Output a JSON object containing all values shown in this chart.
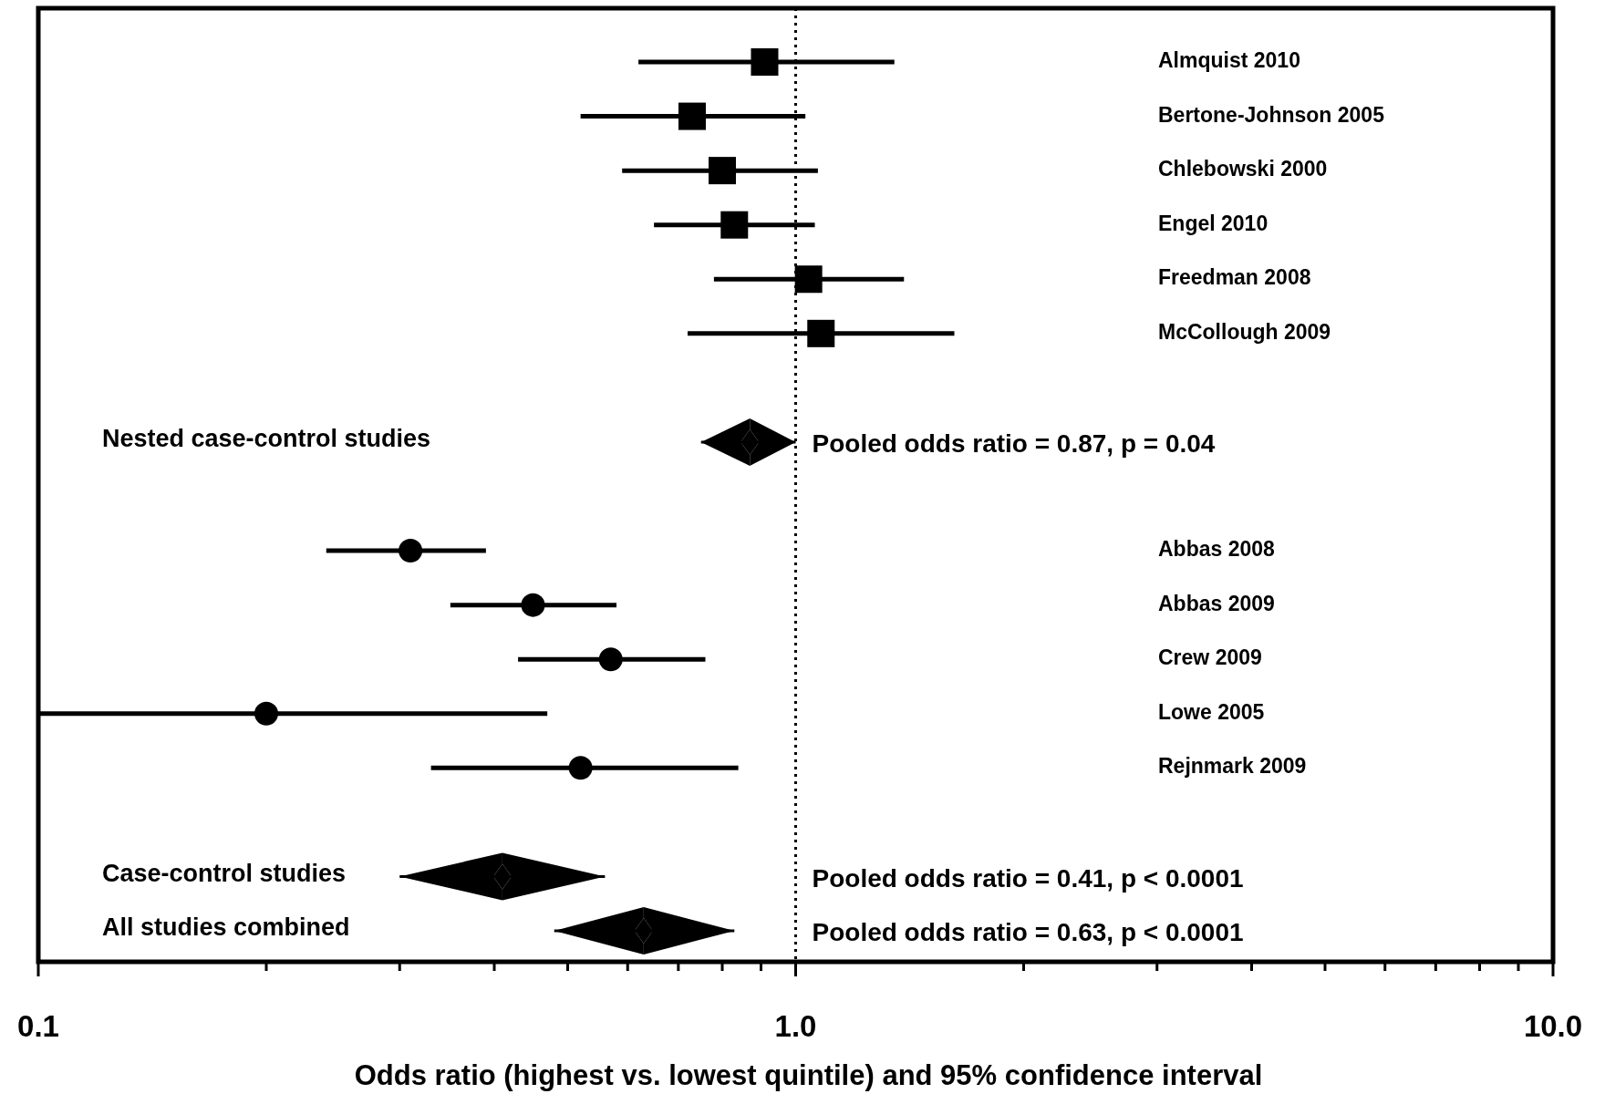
{
  "chart_data": {
    "type": "scatter",
    "orientation": "horizontal",
    "xlabel": "Odds ratio (highest vs. lowest quintile) and 95% confidence interval",
    "categories": [
      "Almquist 2010",
      "Bertone-Johnson 2005",
      "Chlebowski 2000",
      "Engel 2010",
      "Freedman 2008",
      "McCollough 2009",
      null,
      "Nested case-control studies",
      null,
      "Abbas 2008",
      "Abbas 2009",
      "Crew 2009",
      "Lowe 2005",
      "Rejnmark 2009",
      null,
      "Case-control studies",
      "All studies combined"
    ],
    "series": [
      {
        "marker": "square",
        "color": "#000000",
        "values": [
          0.91,
          0.73,
          0.8,
          0.83,
          1.04,
          1.08,
          null,
          null,
          null,
          null,
          null,
          null,
          null,
          null,
          null,
          null,
          null
        ],
        "errors": [
          [
            0.62,
            1.35
          ],
          [
            0.52,
            1.03
          ],
          [
            0.59,
            1.07
          ],
          [
            0.65,
            1.06
          ],
          [
            0.78,
            1.39
          ],
          [
            0.72,
            1.62
          ],
          null,
          null,
          null,
          null,
          null,
          null,
          null,
          null,
          null,
          null,
          null
        ]
      },
      {
        "marker": "circle",
        "color": "#000000",
        "values": [
          null,
          null,
          null,
          null,
          null,
          null,
          null,
          null,
          null,
          0.31,
          0.45,
          0.57,
          0.2,
          0.52,
          null,
          null,
          null
        ],
        "errors": [
          null,
          null,
          null,
          null,
          null,
          null,
          null,
          null,
          null,
          [
            0.24,
            0.39
          ],
          [
            0.35,
            0.58
          ],
          [
            0.43,
            0.76
          ],
          [
            0.1,
            0.47
          ],
          [
            0.33,
            0.84
          ],
          null,
          null,
          null
        ]
      },
      {
        "marker": "diamond",
        "color": "#000000",
        "values": [
          null,
          null,
          null,
          null,
          null,
          null,
          null,
          0.87,
          null,
          null,
          null,
          null,
          null,
          null,
          null,
          0.41,
          0.63
        ],
        "errors": [
          null,
          null,
          null,
          null,
          null,
          null,
          null,
          [
            0.75,
            1.0
          ],
          null,
          null,
          null,
          null,
          null,
          null,
          null,
          [
            0.3,
            0.56
          ],
          [
            0.48,
            0.83
          ]
        ]
      }
    ],
    "annotations": [
      "Pooled odds ratio = 0.87, p = 0.04",
      "Pooled odds ratio = 0.41, p < 0.0001",
      "Pooled odds ratio = 0.63, p < 0.0001"
    ],
    "ref_lines": [
      {
        "axis": "x",
        "value": 1,
        "line_style": "dotted",
        "color": "#000000"
      }
    ],
    "log": "x",
    "grid": false,
    "legend": false,
    "xlim": [
      0.1,
      10
    ],
    "xticks": [
      {
        "value": 0.1,
        "label": "0.1"
      },
      {
        "value": 0.2,
        "label": null
      },
      {
        "value": 0.3,
        "label": null
      },
      {
        "value": 0.4,
        "label": null
      },
      {
        "value": 0.5,
        "label": null
      },
      {
        "value": 0.6,
        "label": null
      },
      {
        "value": 0.7,
        "label": null
      },
      {
        "value": 0.8,
        "label": null
      },
      {
        "value": 0.9,
        "label": null
      },
      {
        "value": 1,
        "label": "1.0"
      },
      {
        "value": 2,
        "label": null
      },
      {
        "value": 3,
        "label": null
      },
      {
        "value": 4,
        "label": null
      },
      {
        "value": 5,
        "label": null
      },
      {
        "value": 6,
        "label": null
      },
      {
        "value": 7,
        "label": null
      },
      {
        "value": 8,
        "label": null
      },
      {
        "value": 9,
        "label": null
      },
      {
        "value": 10,
        "label": "10.0"
      }
    ]
  }
}
